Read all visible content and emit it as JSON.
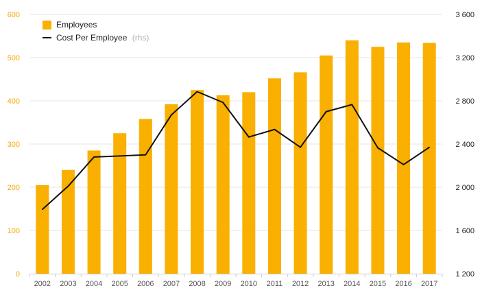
{
  "chart_data": {
    "type": "bar",
    "categories": [
      "2002",
      "2003",
      "2004",
      "2005",
      "2006",
      "2007",
      "2008",
      "2009",
      "2010",
      "2011",
      "2012",
      "2013",
      "2014",
      "2015",
      "2016",
      "2017"
    ],
    "series": [
      {
        "name": "Employees",
        "type": "bar",
        "axis": "left",
        "color": "#f9b000",
        "values": [
          205,
          240,
          285,
          325,
          358,
          392,
          425,
          413,
          420,
          452,
          466,
          505,
          540,
          525,
          535,
          534
        ]
      },
      {
        "name": "Cost Per Employee",
        "name_suffix": "(rhs)",
        "type": "line",
        "axis": "right",
        "color": "#111111",
        "values": [
          1795,
          2010,
          2280,
          2290,
          2300,
          2670,
          2885,
          2785,
          2465,
          2535,
          2370,
          2700,
          2765,
          2365,
          2210,
          2370
        ]
      }
    ],
    "y_left": {
      "min": 0,
      "max": 600,
      "ticks": [
        "0",
        "100",
        "200",
        "300",
        "400",
        "500",
        "600"
      ],
      "tick_color": "#f2a900"
    },
    "y_right": {
      "min": 1200,
      "max": 3600,
      "ticks": [
        "1 200",
        "1 600",
        "2 000",
        "2 400",
        "2 800",
        "3 200",
        "3 600"
      ],
      "tick_color": "#222222"
    },
    "grid": true,
    "legend": "top-left"
  }
}
